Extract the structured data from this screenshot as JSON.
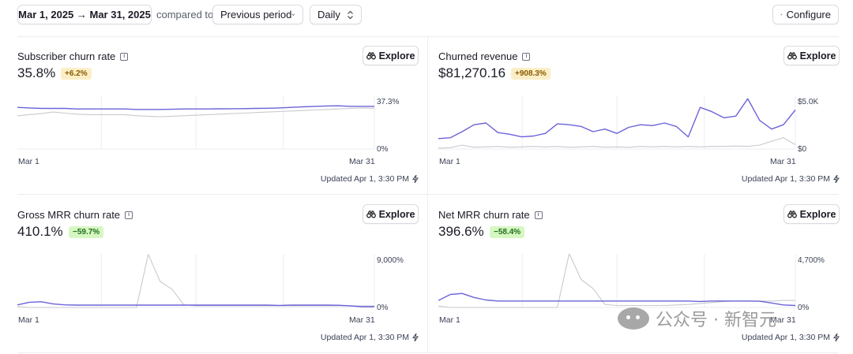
{
  "toolbar": {
    "date_range": "Mar 1, 2025 → Mar 31, 2025",
    "compared_to": "compared to",
    "period": "Previous period",
    "interval": "Daily",
    "configure_label": "Configure"
  },
  "explore_label": "Explore",
  "updated_text": "Updated Apr 1, 3:30 PM",
  "watermark": "公众号 · 新智元",
  "colors": {
    "current": "#6b63d9",
    "previous": "#c8cacf",
    "grid": "#ebedf0"
  },
  "panels": [
    {
      "title": "Subscriber churn rate",
      "value": "35.8%",
      "badge": "+6.2%",
      "badge_type": "up",
      "chart_data": {
        "type": "line",
        "x_start": "Mar 1",
        "x_end": "Mar 31",
        "y_top_label": "37.3%",
        "y_bottom_label": "0%",
        "ylim": [
          0,
          50
        ],
        "series": [
          {
            "values": [
              40,
              39.5,
              39,
              39,
              39,
              38.5,
              38.5,
              38.5,
              38.5,
              38.5,
              38,
              38,
              38,
              38.2,
              38.5,
              38.5,
              38.5,
              38.6,
              38.7,
              38.8,
              39,
              39.2,
              39.5,
              40,
              40.5,
              41,
              41.4,
              41.5,
              41,
              41,
              41
            ]
          },
          {
            "values": [
              32,
              33,
              34,
              35.5,
              34.5,
              33.5,
              33,
              33,
              33,
              33,
              32,
              31.5,
              31,
              31.5,
              32,
              32.5,
              33,
              33.5,
              34,
              34.5,
              35,
              35.5,
              36,
              36.5,
              37,
              37.5,
              38,
              38.5,
              39,
              39.5,
              39
            ]
          }
        ]
      }
    },
    {
      "title": "Churned revenue",
      "value": "$81,270.16",
      "badge": "+908.3%",
      "badge_type": "up",
      "chart_data": {
        "type": "line",
        "x_start": "Mar 1",
        "x_end": "Mar 31",
        "y_top_label": "$5.0K",
        "y_bottom_label": "$0",
        "ylim": [
          0,
          6000
        ],
        "series": [
          {
            "values": [
              1200,
              1300,
              2000,
              2800,
              3000,
              1900,
              1700,
              1400,
              1500,
              1800,
              2900,
              2800,
              2600,
              2000,
              2300,
              1800,
              2500,
              2800,
              2700,
              3000,
              2600,
              1400,
              4800,
              4300,
              3600,
              3800,
              5800,
              3300,
              2300,
              2800,
              4500
            ]
          },
          {
            "values": [
              100,
              150,
              450,
              200,
              250,
              300,
              200,
              250,
              300,
              250,
              300,
              200,
              250,
              300,
              200,
              250,
              200,
              300,
              250,
              300,
              250,
              300,
              250,
              300,
              300,
              350,
              300,
              450,
              900,
              1300,
              500
            ]
          }
        ]
      }
    },
    {
      "title": "Gross MRR churn rate",
      "value": "410.1%",
      "badge": "−59.7%",
      "badge_type": "down",
      "chart_data": {
        "type": "line",
        "x_start": "Mar 1",
        "x_end": "Mar 31",
        "y_top_label": "9,000%",
        "y_bottom_label": "0%",
        "ylim": [
          0,
          10000
        ],
        "series": [
          {
            "values": [
              500,
              1000,
              1100,
              700,
              500,
              450,
              450,
              450,
              450,
              450,
              450,
              450,
              450,
              450,
              450,
              450,
              450,
              450,
              450,
              450,
              450,
              450,
              400,
              450,
              450,
              450,
              450,
              420,
              300,
              150,
              150
            ]
          },
          {
            "values": [
              200,
              0,
              0,
              0,
              0,
              0,
              0,
              0,
              0,
              0,
              0,
              10200,
              5000,
              3500,
              500,
              300,
              300,
              300,
              300,
              300,
              300,
              300,
              300,
              300,
              300,
              300,
              300,
              300,
              300,
              300,
              300
            ]
          }
        ]
      }
    },
    {
      "title": "Net MRR churn rate",
      "value": "396.6%",
      "badge": "−58.4%",
      "badge_type": "down",
      "chart_data": {
        "type": "line",
        "x_start": "Mar 1",
        "x_end": "Mar 31",
        "y_top_label": "4,700%",
        "y_bottom_label": "0%",
        "ylim": [
          0,
          5200
        ],
        "series": [
          {
            "values": [
              700,
              1300,
              1400,
              1000,
              750,
              650,
              650,
              650,
              650,
              650,
              650,
              650,
              650,
              650,
              650,
              650,
              650,
              650,
              650,
              650,
              650,
              650,
              600,
              650,
              650,
              650,
              650,
              620,
              450,
              250,
              200
            ]
          },
          {
            "values": [
              150,
              0,
              0,
              0,
              0,
              0,
              0,
              0,
              0,
              0,
              0,
              5400,
              2800,
              1900,
              300,
              200,
              200,
              200,
              200,
              200,
              250,
              300,
              400,
              500,
              600,
              650,
              650,
              650,
              650,
              700,
              700
            ]
          }
        ]
      }
    }
  ]
}
